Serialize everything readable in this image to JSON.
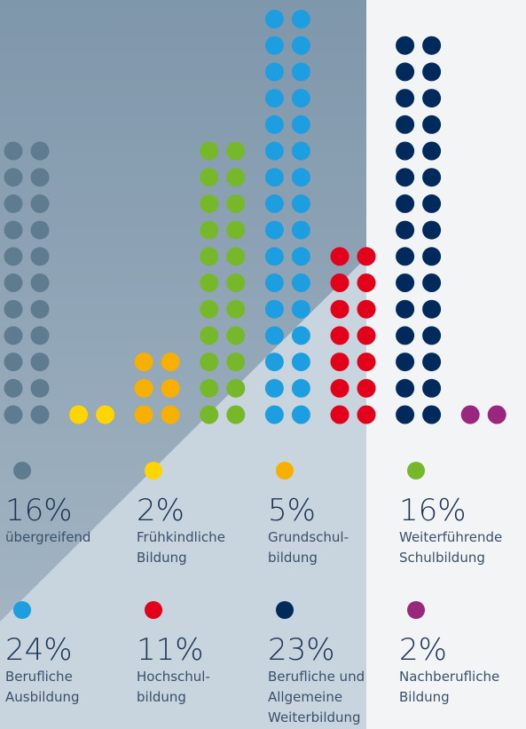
{
  "chart_data": {
    "type": "dot-column",
    "items": [
      {
        "value": 16,
        "value_label": "16%",
        "label": [
          "übergreifend"
        ],
        "color": "#5e7b90"
      },
      {
        "value": 2,
        "value_label": "2%",
        "label": [
          "Frühkindliche",
          "Bildung"
        ],
        "color": "#ffd500"
      },
      {
        "value": 5,
        "value_label": "5%",
        "label": [
          "Grundschul-",
          "bildung"
        ],
        "color": "#f8b000"
      },
      {
        "value": 16,
        "value_label": "16%",
        "label": [
          "Weiterführende",
          "Schulbildung"
        ],
        "color": "#76b82a"
      },
      {
        "value": 24,
        "value_label": "24%",
        "label": [
          "Berufliche",
          "Ausbildung"
        ],
        "color": "#1d9ee0"
      },
      {
        "value": 11,
        "value_label": "11%",
        "label": [
          "Hochschul-",
          "bildung"
        ],
        "color": "#e2001a"
      },
      {
        "value": 23,
        "value_label": "23%",
        "label": [
          "Berufliche und",
          "Allgemeine",
          "Weiterbildung"
        ],
        "color": "#002a5c"
      },
      {
        "value": 2,
        "value_label": "2%",
        "label": [
          "Nachberufliche",
          "Bildung"
        ],
        "color": "#98277d"
      }
    ]
  }
}
